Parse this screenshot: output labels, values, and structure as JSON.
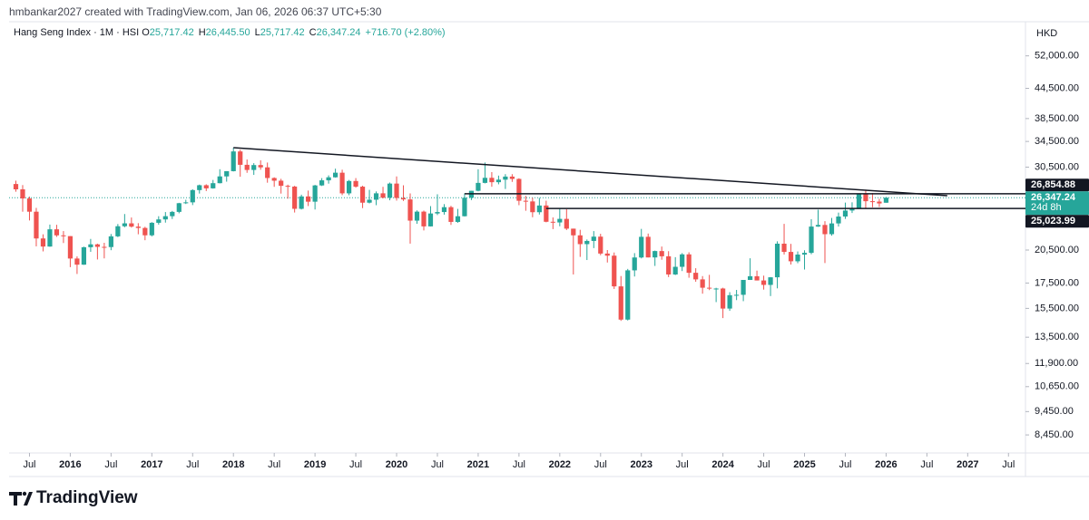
{
  "header": "hmbankar2027 created with TradingView.com, Jan 06, 2026 06:37 UTC+5:30",
  "brand": "TradingView",
  "chart_data": {
    "type": "candlestick",
    "legend": {
      "title": "Hang Seng Index · 1M · HSI",
      "fields": [
        {
          "key": "O",
          "value": "25,717.42"
        },
        {
          "key": "H",
          "value": "26,445.50"
        },
        {
          "key": "L",
          "value": "25,717.42"
        },
        {
          "key": "C",
          "value": "26,347.24"
        }
      ],
      "change": "+716.70 (+2.80%)"
    },
    "currency": "HKD",
    "up_color": "#26a69a",
    "down_color": "#ef5350",
    "log_scale": true,
    "grid": false,
    "xlim": [
      -1,
      148.5
    ],
    "xticks": [
      {
        "value": 2,
        "label": "Jul"
      },
      {
        "value": 8,
        "label": "2016"
      },
      {
        "value": 14,
        "label": "Jul"
      },
      {
        "value": 20,
        "label": "2017"
      },
      {
        "value": 26,
        "label": "Jul"
      },
      {
        "value": 32,
        "label": "2018"
      },
      {
        "value": 38,
        "label": "Jul"
      },
      {
        "value": 44,
        "label": "2019"
      },
      {
        "value": 50,
        "label": "Jul"
      },
      {
        "value": 56,
        "label": "2020"
      },
      {
        "value": 62,
        "label": "Jul"
      },
      {
        "value": 68,
        "label": "2021"
      },
      {
        "value": 74,
        "label": "Jul"
      },
      {
        "value": 80,
        "label": "2022"
      },
      {
        "value": 86,
        "label": "Jul"
      },
      {
        "value": 92,
        "label": "2023"
      },
      {
        "value": 98,
        "label": "Jul"
      },
      {
        "value": 104,
        "label": "2024"
      },
      {
        "value": 110,
        "label": "Jul"
      },
      {
        "value": 116,
        "label": "2025"
      },
      {
        "value": 122,
        "label": "Jul"
      },
      {
        "value": 128,
        "label": "2026"
      },
      {
        "value": 134,
        "label": "Jul"
      },
      {
        "value": 140,
        "label": "2027"
      },
      {
        "value": 146,
        "label": "Jul"
      }
    ],
    "ylim": [
      7750,
      54700
    ],
    "yticks": [
      {
        "value": 52000,
        "label": "52,000.00"
      },
      {
        "value": 44500,
        "label": "44,500.00"
      },
      {
        "value": 38500,
        "label": "38,500.00"
      },
      {
        "value": 34500,
        "label": "34,500.00"
      },
      {
        "value": 30500,
        "label": "30,500.00"
      },
      {
        "value": 20500,
        "label": "20,500.00"
      },
      {
        "value": 17500,
        "label": "17,500.00"
      },
      {
        "value": 15500,
        "label": "15,500.00"
      },
      {
        "value": 13500,
        "label": "13,500.00"
      },
      {
        "value": 11900,
        "label": "11,900.00"
      },
      {
        "value": 10650,
        "label": "10,650.00"
      },
      {
        "value": 9450,
        "label": "9,450.00"
      },
      {
        "value": 8450,
        "label": "8,450.00"
      }
    ],
    "candles": [
      [
        28133,
        28588,
        27111,
        27424
      ],
      [
        27424,
        27990,
        24634,
        26250
      ],
      [
        26250,
        26485,
        23623,
        24636
      ],
      [
        24636,
        25092,
        20865,
        21670
      ],
      [
        21670,
        22105,
        20368,
        20846
      ],
      [
        20846,
        23163,
        20826,
        22640
      ],
      [
        22640,
        23137,
        21834,
        21996
      ],
      [
        21996,
        22450,
        21200,
        21914
      ],
      [
        21914,
        21914,
        18886,
        19683
      ],
      [
        19683,
        19887,
        18278,
        19112
      ],
      [
        19112,
        20835,
        19093,
        20777
      ],
      [
        20777,
        21622,
        20324,
        21067
      ],
      [
        21067,
        21134,
        19594,
        20815
      ],
      [
        20815,
        21224,
        19694,
        20794
      ],
      [
        20794,
        22138,
        20485,
        21891
      ],
      [
        21891,
        23221,
        21807,
        22977
      ],
      [
        22977,
        24364,
        22860,
        23297
      ],
      [
        23297,
        23960,
        22833,
        22935
      ],
      [
        22935,
        23320,
        22109,
        22790
      ],
      [
        22790,
        22918,
        21488,
        22001
      ],
      [
        22001,
        23433,
        21883,
        23361
      ],
      [
        23361,
        24109,
        23159,
        23741
      ],
      [
        23741,
        24594,
        23380,
        24112
      ],
      [
        24112,
        24728,
        23790,
        24615
      ],
      [
        24615,
        25706,
        24448,
        25661
      ],
      [
        25661,
        26090,
        25562,
        25765
      ],
      [
        25765,
        27438,
        25430,
        27324
      ],
      [
        27324,
        28056,
        26873,
        27970
      ],
      [
        27970,
        28097,
        27198,
        27554
      ],
      [
        27554,
        28686,
        27514,
        28246
      ],
      [
        28246,
        30199,
        28213,
        29177
      ],
      [
        29177,
        29919,
        28449,
        29919
      ],
      [
        29919,
        33484,
        29879,
        32887
      ],
      [
        32887,
        33164,
        29129,
        30845
      ],
      [
        30845,
        31642,
        29685,
        30093
      ],
      [
        30093,
        31092,
        29388,
        30808
      ],
      [
        30808,
        31521,
        30125,
        30469
      ],
      [
        30469,
        31184,
        28309,
        28955
      ],
      [
        28955,
        29050,
        27756,
        28583
      ],
      [
        28583,
        28842,
        26871,
        27889
      ],
      [
        27889,
        28048,
        26219,
        27789
      ],
      [
        27789,
        27889,
        24540,
        24980
      ],
      [
        24980,
        26730,
        24899,
        26507
      ],
      [
        26507,
        27260,
        25313,
        25846
      ],
      [
        25846,
        28016,
        24896,
        27942
      ],
      [
        27942,
        28940,
        27866,
        28633
      ],
      [
        28633,
        29322,
        28180,
        29051
      ],
      [
        29051,
        30280,
        29003,
        29699
      ],
      [
        29699,
        30128,
        26671,
        26901
      ],
      [
        26901,
        28685,
        26660,
        28543
      ],
      [
        28543,
        28944,
        27644,
        27777
      ],
      [
        27777,
        27903,
        25064,
        25725
      ],
      [
        25725,
        27358,
        25632,
        26092
      ],
      [
        26092,
        27148,
        25416,
        26907
      ],
      [
        26907,
        27755,
        26255,
        26346
      ],
      [
        26346,
        28330,
        26022,
        28190
      ],
      [
        28190,
        29174,
        25982,
        26313
      ],
      [
        26313,
        27960,
        25939,
        26130
      ],
      [
        26130,
        26893,
        21139,
        23603
      ],
      [
        23603,
        24791,
        23245,
        24644
      ],
      [
        24644,
        24767,
        22520,
        22961
      ],
      [
        22961,
        25303,
        22945,
        24427
      ],
      [
        24427,
        26782,
        24242,
        24595
      ],
      [
        24595,
        25548,
        24292,
        25177
      ],
      [
        25177,
        25339,
        23123,
        23459
      ],
      [
        23459,
        24970,
        23358,
        24107
      ],
      [
        24107,
        26894,
        24080,
        26341
      ],
      [
        26341,
        27231,
        26047,
        27231
      ],
      [
        27231,
        30191,
        27162,
        28284
      ],
      [
        28284,
        31183,
        28217,
        28980
      ],
      [
        28980,
        29780,
        27765,
        28378
      ],
      [
        28378,
        29290,
        28093,
        28725
      ],
      [
        28725,
        29493,
        27469,
        29152
      ],
      [
        29152,
        29491,
        28422,
        28828
      ],
      [
        28828,
        28919,
        25416,
        25961
      ],
      [
        25961,
        26581,
        24748,
        25879
      ],
      [
        25879,
        26353,
        23989,
        24576
      ],
      [
        24576,
        26325,
        24305,
        25377
      ],
      [
        25377,
        25967,
        23416,
        23475
      ],
      [
        23475,
        23969,
        22665,
        23398
      ],
      [
        23398,
        25051,
        22974,
        23802
      ],
      [
        23802,
        24923,
        22564,
        22713
      ],
      [
        22713,
        22713,
        18235,
        21997
      ],
      [
        21997,
        22590,
        19838,
        21089
      ],
      [
        21089,
        21565,
        19541,
        21415
      ],
      [
        21415,
        22449,
        20692,
        21860
      ],
      [
        21860,
        22160,
        19998,
        20157
      ],
      [
        20157,
        20500,
        19310,
        19954
      ],
      [
        19954,
        20261,
        17011,
        17223
      ],
      [
        17223,
        18099,
        14597,
        14687
      ],
      [
        14687,
        18727,
        14624,
        18597
      ],
      [
        18597,
        20199,
        18057,
        19781
      ],
      [
        19781,
        22688,
        19695,
        21842
      ],
      [
        21842,
        22184,
        19786,
        19786
      ],
      [
        19786,
        20445,
        18996,
        20400
      ],
      [
        20400,
        20847,
        19567,
        19895
      ],
      [
        19895,
        20389,
        18009,
        18234
      ],
      [
        18234,
        19812,
        18184,
        18916
      ],
      [
        18916,
        20199,
        18536,
        20079
      ],
      [
        20079,
        20281,
        17950,
        18382
      ],
      [
        18382,
        18789,
        17606,
        17810
      ],
      [
        17810,
        18094,
        16630,
        17112
      ],
      [
        17112,
        18201,
        16917,
        17042
      ],
      [
        17042,
        17107,
        15972,
        17047
      ],
      [
        17047,
        17112,
        14794,
        15485
      ],
      [
        15485,
        16751,
        15317,
        16511
      ],
      [
        16511,
        16932,
        16126,
        16541
      ],
      [
        16541,
        17763,
        16044,
        17763
      ],
      [
        17763,
        19706,
        17760,
        18080
      ],
      [
        18080,
        18573,
        17718,
        17719
      ],
      [
        17719,
        18132,
        16957,
        17345
      ],
      [
        17345,
        18009,
        16441,
        17989
      ],
      [
        17989,
        21376,
        17061,
        21134
      ],
      [
        21134,
        23241,
        20066,
        20317
      ],
      [
        20317,
        21116,
        19123,
        19424
      ],
      [
        19424,
        20361,
        19246,
        20060
      ],
      [
        20060,
        20478,
        18671,
        20225
      ],
      [
        20225,
        23764,
        20090,
        22941
      ],
      [
        22941,
        24874,
        22907,
        23120
      ],
      [
        23120,
        23543,
        19260,
        22119
      ],
      [
        22119,
        23911,
        21960,
        23290
      ],
      [
        23290,
        24530,
        22941,
        24072
      ],
      [
        24072,
        25735,
        23800,
        24773
      ],
      [
        24773,
        25770,
        24482,
        25077
      ],
      [
        25077,
        26882,
        25021,
        26856
      ],
      [
        26856,
        27381,
        25056,
        25907
      ],
      [
        25907,
        26950,
        25164,
        25859
      ],
      [
        25859,
        26205,
        25200,
        25631
      ],
      [
        25717.42,
        26445.5,
        25717.42,
        26347.24
      ]
    ],
    "trendline": {
      "x": [
        32,
        137
      ],
      "y": [
        33484,
        26600
      ]
    },
    "levels": [
      {
        "from": 66,
        "value": 26854.88,
        "label": "26,854.88"
      },
      {
        "from": 78,
        "value": 25023.99,
        "label": "25,023.99"
      }
    ],
    "last_price": {
      "value": 26347.24,
      "label": "26,347.24",
      "countdown": "24d 8h"
    }
  }
}
